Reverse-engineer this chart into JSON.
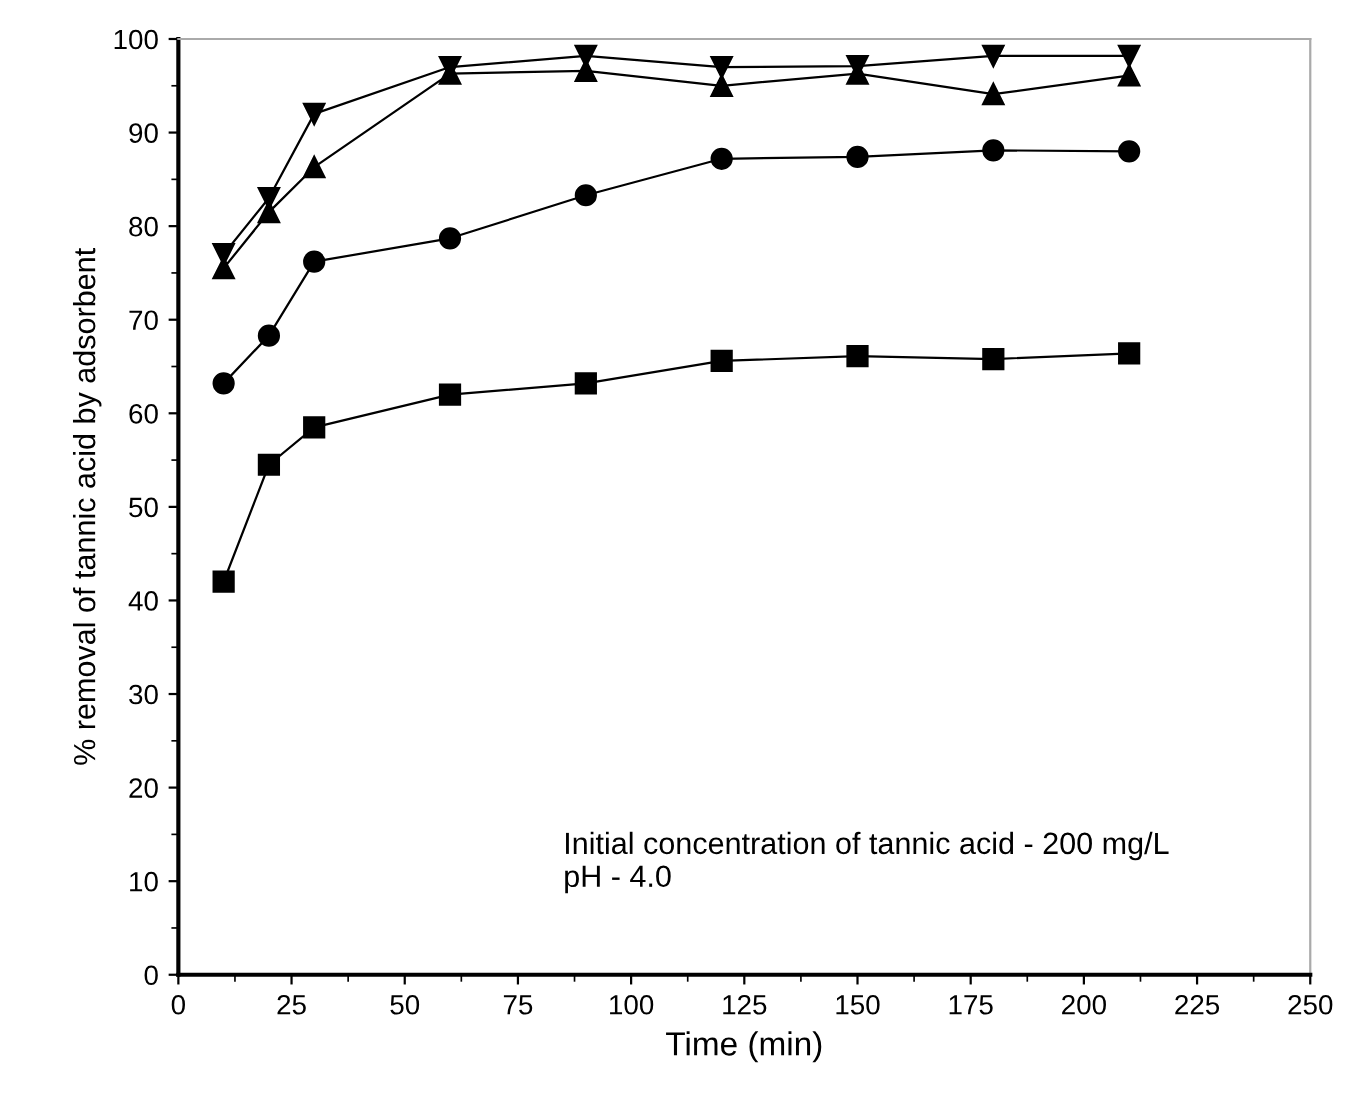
{
  "chart_data": {
    "type": "line",
    "xlabel": "Time (min)",
    "ylabel": "% removal of tannic acid by adsorbent",
    "x": [
      10,
      20,
      30,
      60,
      90,
      120,
      150,
      180,
      210
    ],
    "series": [
      {
        "color": "#000000",
        "marker": "square",
        "values": [
          42,
          54.5,
          58.5,
          62,
          63.2,
          65.6,
          66.1,
          65.8,
          66.4
        ]
      },
      {
        "color": "#000000",
        "marker": "circle",
        "values": [
          63.2,
          68.3,
          76.2,
          78.7,
          83.3,
          87.2,
          87.4,
          88.1,
          88.0
        ]
      },
      {
        "color": "#000000",
        "marker": "triangle",
        "values": [
          75.5,
          81.5,
          86.3,
          96.3,
          96.6,
          95.0,
          96.3,
          94.1,
          96.1
        ]
      },
      {
        "color": "#000000",
        "marker": "triangle_down",
        "values": [
          77,
          83,
          92,
          97,
          98.2,
          97,
          97.1,
          98.2,
          98.2
        ]
      }
    ],
    "xlim": [
      0,
      250
    ],
    "xticks": [
      0,
      25,
      50,
      75,
      100,
      125,
      150,
      175,
      200,
      225,
      250
    ],
    "ylim": [
      0,
      100
    ],
    "yticks": [
      0,
      10,
      20,
      30,
      40,
      50,
      60,
      70,
      80,
      90,
      100
    ],
    "grid": false,
    "legend": false,
    "line_style": "solid",
    "annotations": [
      "Initial concentration of tannic acid - 200 mg/L\npH - 4.0"
    ]
  }
}
